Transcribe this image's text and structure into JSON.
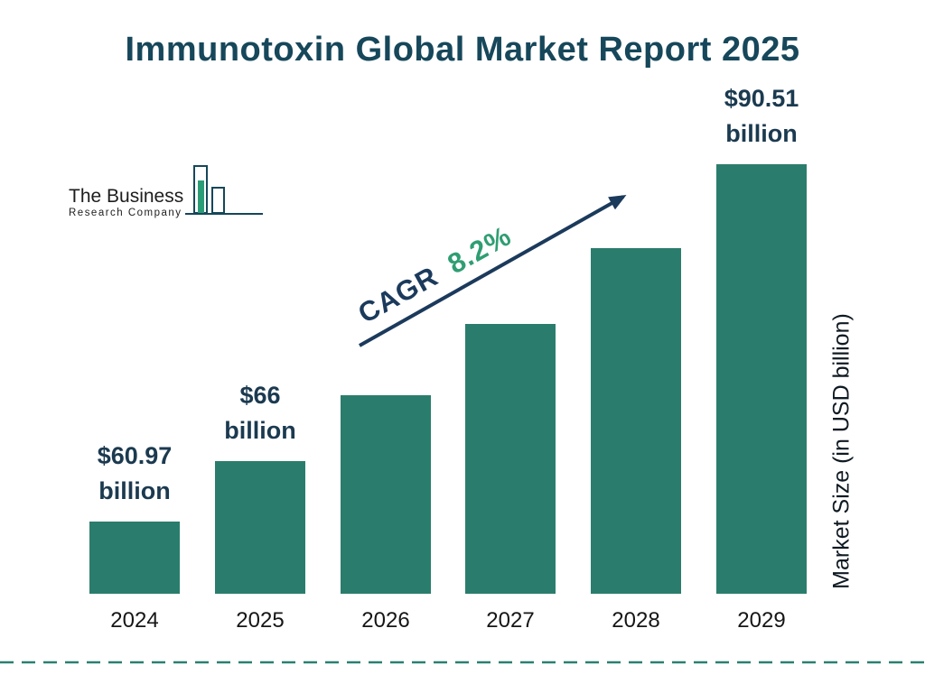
{
  "page": {
    "title": "Immunotoxin Global Market Report 2025"
  },
  "logo": {
    "line1": "The Business",
    "line2": "Research Company"
  },
  "chart_data": {
    "type": "bar",
    "title": "Immunotoxin Global Market Report 2025",
    "categories": [
      "2024",
      "2025",
      "2026",
      "2027",
      "2028",
      "2029"
    ],
    "values": [
      60.97,
      66,
      71.4,
      77.3,
      83.6,
      90.51
    ],
    "xlabel": "",
    "ylabel": "Market Size (in USD billion)",
    "ylim": [
      55,
      95
    ],
    "grid": false,
    "legend": false,
    "bar_labels": {
      "2024": [
        "$60.97",
        "billion"
      ],
      "2025": [
        "$66",
        "billion"
      ],
      "2029": [
        "$90.51",
        "billion"
      ]
    },
    "annotation": {
      "cagr_label": "CAGR",
      "cagr_value": "8.2%"
    },
    "colors": {
      "bar": "#2a7d6c",
      "title": "#16475a",
      "label": "#1b3a50",
      "arrow": "#1b3a5c",
      "cagr_value": "#2f9e72",
      "dashed_line": "#2a8070"
    }
  }
}
